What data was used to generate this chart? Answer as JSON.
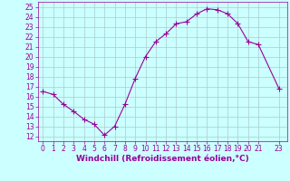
{
  "x": [
    0,
    1,
    2,
    3,
    4,
    5,
    6,
    7,
    8,
    9,
    10,
    11,
    12,
    13,
    14,
    15,
    16,
    17,
    18,
    19,
    20,
    21,
    23
  ],
  "y": [
    16.5,
    16.2,
    15.2,
    14.5,
    13.7,
    13.2,
    12.1,
    13.0,
    15.2,
    17.8,
    20.0,
    21.5,
    22.3,
    23.3,
    23.5,
    24.3,
    24.8,
    24.7,
    24.3,
    23.3,
    21.5,
    21.2,
    16.8
  ],
  "line_color": "#990099",
  "marker": "+",
  "markersize": 4,
  "linewidth": 0.8,
  "markeredgewidth": 0.8,
  "bg_color": "#ccffff",
  "grid_color": "#aacccc",
  "xlabel": "Windchill (Refroidissement éolien,°C)",
  "xlabel_color": "#990099",
  "xlabel_fontsize": 6.5,
  "xtick_labels": [
    "0",
    "1",
    "2",
    "3",
    "4",
    "5",
    "6",
    "7",
    "8",
    "9",
    "10",
    "11",
    "12",
    "13",
    "14",
    "15",
    "16",
    "17",
    "18",
    "19",
    "20",
    "21",
    "23"
  ],
  "xtick_positions": [
    0,
    1,
    2,
    3,
    4,
    5,
    6,
    7,
    8,
    9,
    10,
    11,
    12,
    13,
    14,
    15,
    16,
    17,
    18,
    19,
    20,
    21,
    23
  ],
  "ytick_labels": [
    "12",
    "13",
    "14",
    "15",
    "16",
    "17",
    "18",
    "19",
    "20",
    "21",
    "22",
    "23",
    "24",
    "25"
  ],
  "ytick_positions": [
    12,
    13,
    14,
    15,
    16,
    17,
    18,
    19,
    20,
    21,
    22,
    23,
    24,
    25
  ],
  "ylim": [
    11.5,
    25.5
  ],
  "xlim": [
    -0.5,
    23.8
  ],
  "tick_color": "#990099",
  "tick_fontsize": 5.5,
  "spine_color": "#990099"
}
